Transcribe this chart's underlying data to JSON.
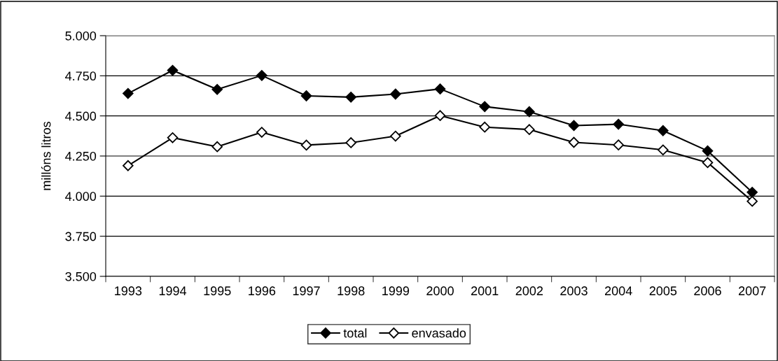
{
  "chart_data": {
    "type": "line",
    "ylabel": "millóns litros",
    "categories": [
      "1993",
      "1994",
      "1995",
      "1996",
      "1997",
      "1998",
      "1999",
      "2000",
      "2001",
      "2002",
      "2003",
      "2004",
      "2005",
      "2006",
      "2007"
    ],
    "series": [
      {
        "name": "total",
        "color": "#000000",
        "values": [
          4640,
          4784,
          4665,
          4752,
          4625,
          4617,
          4636,
          4668,
          4558,
          4526,
          4440,
          4448,
          4408,
          4282,
          4024
        ]
      },
      {
        "name": "envasado",
        "color": "#ffffff",
        "values": [
          4190,
          4364,
          4308,
          4398,
          4318,
          4333,
          4374,
          4502,
          4430,
          4415,
          4335,
          4319,
          4288,
          4209,
          3968
        ]
      }
    ],
    "ylim": [
      3500,
      5000
    ],
    "yticks": [
      {
        "value": 3500,
        "label": "3.500"
      },
      {
        "value": 3750,
        "label": "3.750"
      },
      {
        "value": 4000,
        "label": "4.000"
      },
      {
        "value": 4250,
        "label": "4.250"
      },
      {
        "value": 4500,
        "label": "4.500"
      },
      {
        "value": 4750,
        "label": "4.750"
      },
      {
        "value": 5000,
        "label": "5.000"
      }
    ],
    "grid": "y",
    "legend": "bottom",
    "marker": "diamond",
    "line_style": "solid"
  }
}
